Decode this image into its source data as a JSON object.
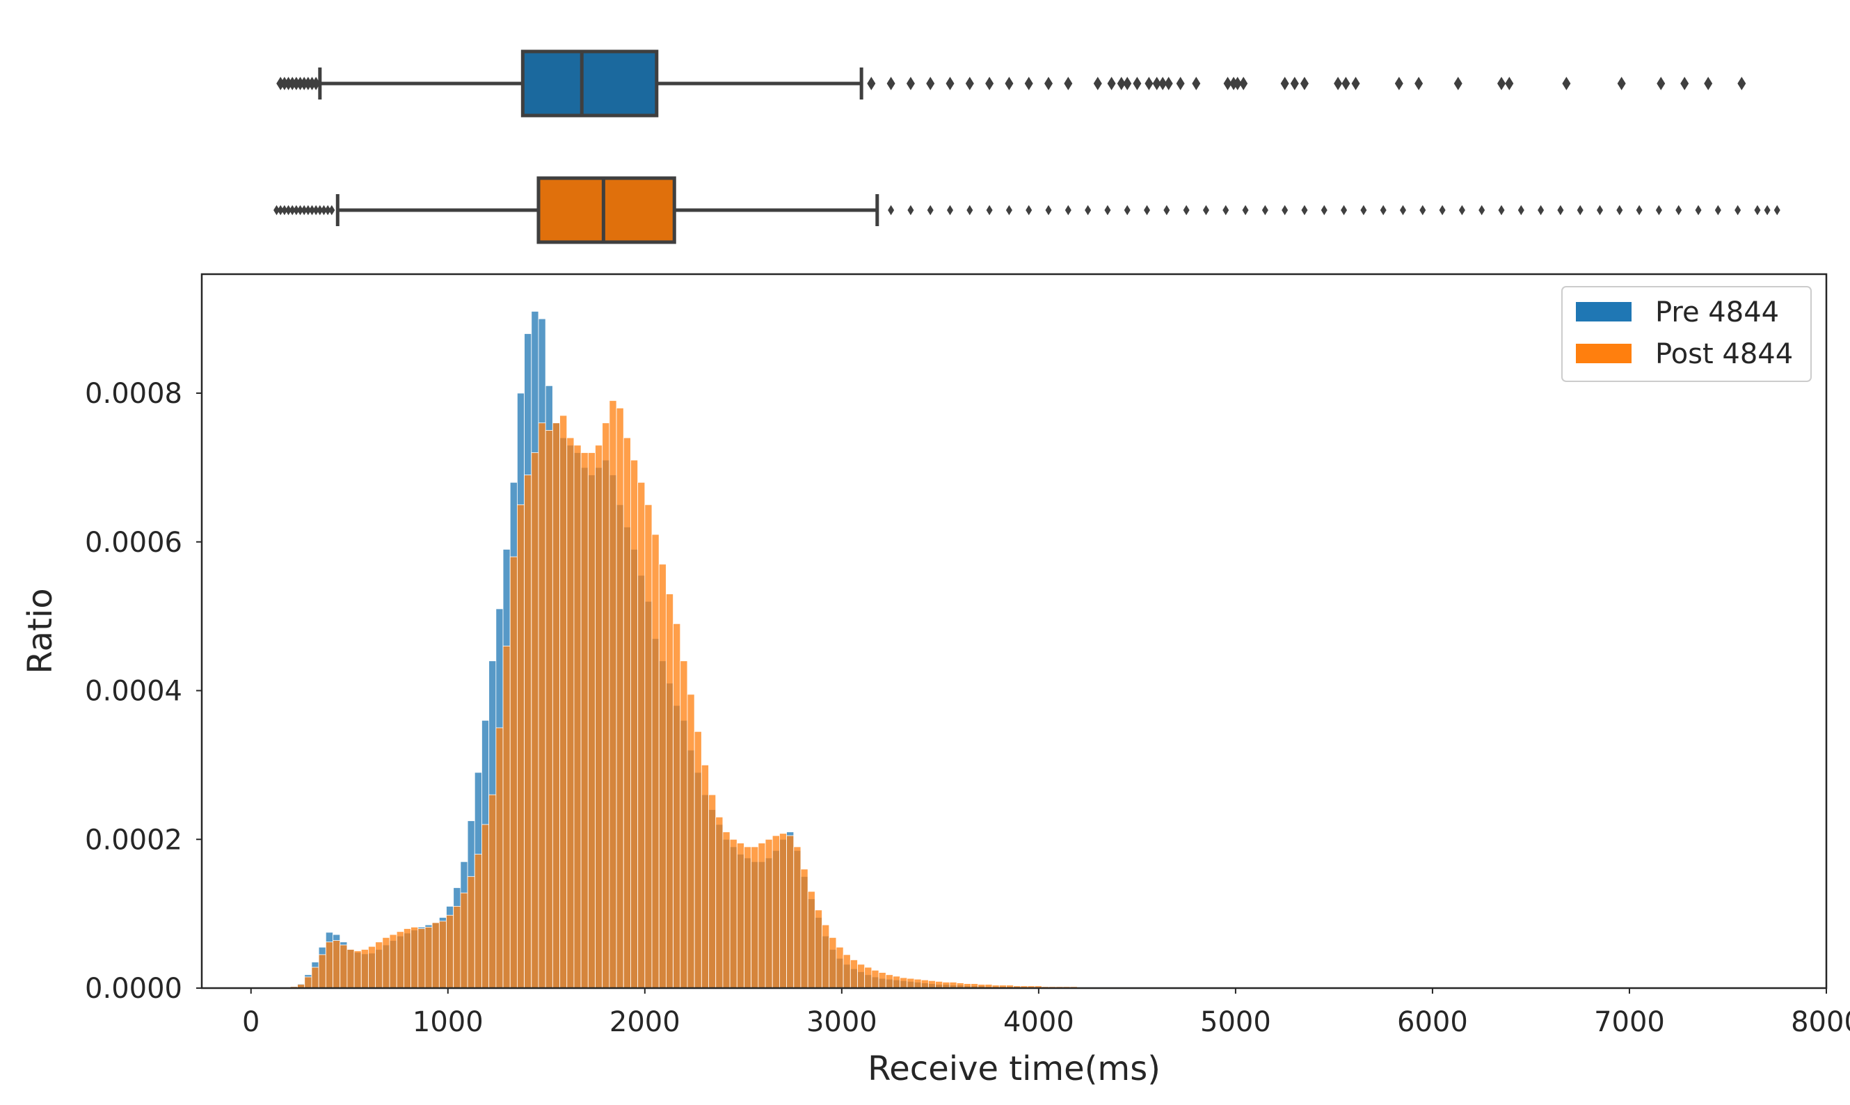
{
  "chart_data": [
    {
      "type": "box",
      "orientation": "horizontal",
      "series": [
        {
          "name": "Pre 4844",
          "color": "#1f77b4",
          "whisker_low": 350,
          "q1": 1380,
          "median": 1680,
          "q3": 2060,
          "whisker_high": 3100,
          "outliers": [
            150,
            170,
            190,
            210,
            230,
            250,
            270,
            290,
            310,
            330,
            3150,
            3250,
            3350,
            3450,
            3550,
            3650,
            3750,
            3850,
            3950,
            4050,
            4150,
            4300,
            4370,
            4420,
            4450,
            4500,
            4560,
            4600,
            4630,
            4660,
            4720,
            4800,
            4960,
            4990,
            5010,
            5040,
            5250,
            5300,
            5350,
            5520,
            5560,
            5610,
            5830,
            5930,
            6130,
            6350,
            6390,
            6680,
            6960,
            7160,
            7280,
            7400,
            7570
          ]
        },
        {
          "name": "Post 4844",
          "color": "#ff7f0e",
          "whisker_low": 440,
          "q1": 1460,
          "median": 1790,
          "q3": 2150,
          "whisker_high": 3180,
          "outliers": [
            130,
            150,
            170,
            190,
            210,
            230,
            250,
            270,
            290,
            310,
            330,
            350,
            370,
            390,
            410,
            3250,
            3350,
            3450,
            3550,
            3650,
            3750,
            3850,
            3950,
            4050,
            4150,
            4250,
            4350,
            4450,
            4550,
            4650,
            4750,
            4850,
            4950,
            5050,
            5150,
            5250,
            5350,
            5450,
            5550,
            5650,
            5750,
            5850,
            5950,
            6050,
            6150,
            6250,
            6350,
            6450,
            6550,
            6650,
            6750,
            6850,
            6950,
            7050,
            7150,
            7250,
            7350,
            7450,
            7550,
            7650,
            7700,
            7750
          ]
        }
      ]
    },
    {
      "type": "histogram",
      "xlabel": "Receive time(ms)",
      "ylabel": "Ratio",
      "xlim": [
        -250,
        8000
      ],
      "ylim": [
        0,
        0.00096
      ],
      "xticks": [
        0,
        1000,
        2000,
        3000,
        4000,
        5000,
        6000,
        7000,
        8000
      ],
      "yticks": [
        0.0,
        0.0002,
        0.0004,
        0.0006,
        0.0008
      ],
      "ytick_labels": [
        "0.0000",
        "0.0002",
        "0.0004",
        "0.0006",
        "0.0008"
      ],
      "legend_position": "upper right",
      "bin_width": 36,
      "series": [
        {
          "name": "Pre 4844",
          "color": "#1f77b4",
          "x": [
            200,
            236,
            272,
            308,
            344,
            380,
            416,
            452,
            488,
            524,
            560,
            596,
            632,
            668,
            704,
            740,
            776,
            812,
            848,
            884,
            920,
            956,
            992,
            1028,
            1064,
            1100,
            1136,
            1172,
            1208,
            1244,
            1280,
            1316,
            1352,
            1388,
            1424,
            1460,
            1496,
            1532,
            1568,
            1604,
            1640,
            1676,
            1712,
            1748,
            1784,
            1820,
            1856,
            1892,
            1928,
            1964,
            2000,
            2036,
            2072,
            2108,
            2144,
            2180,
            2216,
            2252,
            2288,
            2324,
            2360,
            2396,
            2432,
            2468,
            2504,
            2540,
            2576,
            2612,
            2648,
            2684,
            2720,
            2756,
            2792,
            2828,
            2864,
            2900,
            2936,
            2972,
            3008,
            3044,
            3080,
            3116,
            3152,
            3188,
            3224,
            3260,
            3296,
            3332,
            3368,
            3404,
            3440,
            3476,
            3512,
            3548,
            3584,
            3620,
            3656,
            3692,
            3728,
            3764,
            3800,
            3836,
            3872,
            3908,
            3944,
            3980,
            4016,
            4052,
            4088,
            4124,
            4160,
            4196,
            4232,
            4268,
            4304,
            4340,
            4376,
            4412
          ],
          "y": [
            2e-06,
            6e-06,
            1.8e-05,
            3.5e-05,
            5.5e-05,
            7.5e-05,
            7.2e-05,
            6.2e-05,
            5.2e-05,
            4.8e-05,
            4.6e-05,
            4.7e-05,
            5.2e-05,
            5.8e-05,
            6.4e-05,
            7e-05,
            7.4e-05,
            7.8e-05,
            8.2e-05,
            8.5e-05,
            8.8e-05,
            9.5e-05,
            0.00011,
            0.000135,
            0.00017,
            0.000225,
            0.00029,
            0.00036,
            0.00044,
            0.00051,
            0.00059,
            0.00068,
            0.0008,
            0.00088,
            0.00091,
            0.0009,
            0.00081,
            0.00076,
            0.00074,
            0.00073,
            0.00072,
            0.0007,
            0.00069,
            0.0007,
            0.00071,
            0.00069,
            0.00065,
            0.00062,
            0.00059,
            0.000555,
            0.00052,
            0.00047,
            0.00044,
            0.00041,
            0.00038,
            0.00036,
            0.00032,
            0.00029,
            0.00026,
            0.00024,
            0.00022,
            0.0002,
            0.00019,
            0.00018,
            0.000175,
            0.00017,
            0.00017,
            0.000175,
            0.000185,
            0.0002,
            0.00021,
            0.000185,
            0.00015,
            0.00012,
            9.5e-05,
            7e-05,
            5.2e-05,
            4e-05,
            3.2e-05,
            2.6e-05,
            2.2e-05,
            1.8e-05,
            1.5e-05,
            1.3e-05,
            1.2e-05,
            1.1e-05,
            1e-05,
            9e-06,
            8e-06,
            7e-06,
            6e-06,
            5e-06,
            5e-06,
            4e-06,
            4e-06,
            3e-06,
            3e-06,
            3e-06,
            2e-06,
            2e-06,
            2e-06,
            2e-06,
            2e-06,
            1e-06,
            1e-06,
            1e-06,
            1e-06,
            1e-06,
            1e-06,
            1e-06,
            1e-06,
            1e-06,
            1e-06,
            1e-06,
            1e-06,
            1e-06,
            1e-06,
            1e-06
          ]
        },
        {
          "name": "Post 4844",
          "color": "#ff7f0e",
          "x": [
            200,
            236,
            272,
            308,
            344,
            380,
            416,
            452,
            488,
            524,
            560,
            596,
            632,
            668,
            704,
            740,
            776,
            812,
            848,
            884,
            920,
            956,
            992,
            1028,
            1064,
            1100,
            1136,
            1172,
            1208,
            1244,
            1280,
            1316,
            1352,
            1388,
            1424,
            1460,
            1496,
            1532,
            1568,
            1604,
            1640,
            1676,
            1712,
            1748,
            1784,
            1820,
            1856,
            1892,
            1928,
            1964,
            2000,
            2036,
            2072,
            2108,
            2144,
            2180,
            2216,
            2252,
            2288,
            2324,
            2360,
            2396,
            2432,
            2468,
            2504,
            2540,
            2576,
            2612,
            2648,
            2684,
            2720,
            2756,
            2792,
            2828,
            2864,
            2900,
            2936,
            2972,
            3008,
            3044,
            3080,
            3116,
            3152,
            3188,
            3224,
            3260,
            3296,
            3332,
            3368,
            3404,
            3440,
            3476,
            3512,
            3548,
            3584,
            3620,
            3656,
            3692,
            3728,
            3764,
            3800,
            3836,
            3872,
            3908,
            3944,
            3980,
            4016,
            4052,
            4088,
            4124,
            4160,
            4196,
            4232,
            4268,
            4304,
            4340,
            4376,
            4412
          ],
          "y": [
            2e-06,
            5e-06,
            1.5e-05,
            2.8e-05,
            4.5e-05,
            6.2e-05,
            6.4e-05,
            5.8e-05,
            5.2e-05,
            5e-05,
            5.2e-05,
            5.6e-05,
            6.2e-05,
            6.8e-05,
            7.2e-05,
            7.6e-05,
            8e-05,
            8.2e-05,
            8e-05,
            8.2e-05,
            8.8e-05,
            9e-05,
            9.8e-05,
            0.00011,
            0.000128,
            0.00015,
            0.00018,
            0.00022,
            0.00026,
            0.00035,
            0.00046,
            0.00058,
            0.00065,
            0.00069,
            0.00072,
            0.00076,
            0.00075,
            0.00076,
            0.00077,
            0.00074,
            0.00073,
            0.00072,
            0.00072,
            0.00073,
            0.00076,
            0.00079,
            0.00078,
            0.00074,
            0.00071,
            0.00068,
            0.00065,
            0.00061,
            0.00057,
            0.00053,
            0.00049,
            0.00044,
            0.000395,
            0.000345,
            0.0003,
            0.00026,
            0.00023,
            0.00021,
            0.0002,
            0.000195,
            0.00019,
            0.00019,
            0.000195,
            0.0002,
            0.000205,
            0.000208,
            0.000205,
            0.00019,
            0.00016,
            0.00013,
            0.000105,
            8.5e-05,
            6.8e-05,
            5.5e-05,
            4.5e-05,
            3.8e-05,
            3.2e-05,
            2.8e-05,
            2.4e-05,
            2.1e-05,
            1.8e-05,
            1.6e-05,
            1.4e-05,
            1.3e-05,
            1.2e-05,
            1.1e-05,
            1e-05,
            9e-06,
            8e-06,
            8e-06,
            7e-06,
            6e-06,
            6e-06,
            5e-06,
            5e-06,
            4e-06,
            4e-06,
            4e-06,
            3e-06,
            3e-06,
            3e-06,
            3e-06,
            2e-06,
            2e-06,
            2e-06,
            2e-06,
            2e-06,
            1e-06,
            1e-06,
            1e-06,
            1e-06,
            1e-06,
            1e-06,
            1e-06
          ]
        }
      ]
    }
  ]
}
